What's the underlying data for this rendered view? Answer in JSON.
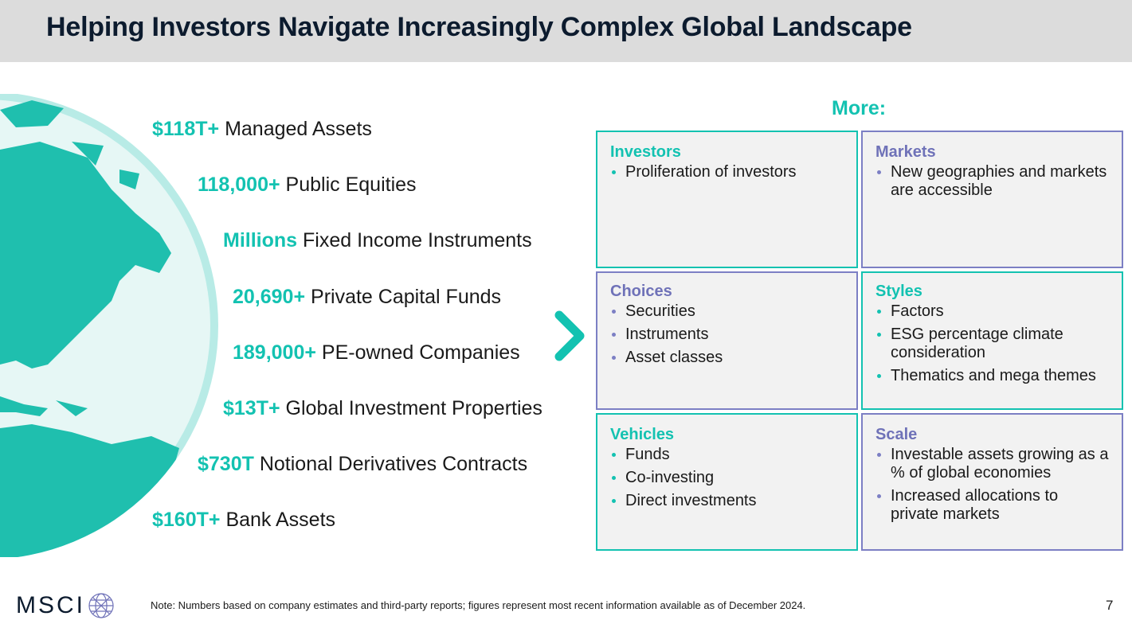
{
  "title": "Helping Investors Navigate Increasingly Complex Global Landscape",
  "stats": [
    {
      "value": "$118T+",
      "label": "Managed Assets"
    },
    {
      "value": "118,000+",
      "label": "Public Equities"
    },
    {
      "value": "Millions",
      "label": "Fixed Income Instruments"
    },
    {
      "value": "20,690+",
      "label": "Private Capital Funds"
    },
    {
      "value": "189,000+",
      "label": "PE-owned Companies"
    },
    {
      "value": "$13T+",
      "label": "Global Investment Properties"
    },
    {
      "value": "$730T",
      "label": "Notional Derivatives Contracts"
    },
    {
      "value": "$160T+",
      "label": "Bank Assets"
    }
  ],
  "more_label": "More:",
  "boxes": {
    "investors": {
      "title": "Investors",
      "items": [
        "Proliferation of investors"
      ]
    },
    "markets": {
      "title": "Markets",
      "items": [
        "New geographies and markets are accessible"
      ]
    },
    "choices": {
      "title": "Choices",
      "items": [
        "Securities",
        "Instruments",
        "Asset classes"
      ]
    },
    "styles": {
      "title": "Styles",
      "items": [
        "Factors",
        "ESG percentage climate consideration",
        "Thematics and mega themes"
      ]
    },
    "vehicles": {
      "title": "Vehicles",
      "items": [
        "Funds",
        "Co-investing",
        "Direct investments"
      ]
    },
    "scale": {
      "title": "Scale",
      "items": [
        "Investable assets growing as a % of global economies",
        "Increased allocations to private markets"
      ]
    }
  },
  "colors": {
    "teal": "#13c2b1",
    "purple": "#7c7fc4",
    "navy": "#0c1b2e",
    "header_gray": "#dcdcdc"
  },
  "footer": {
    "logo": "MSCI",
    "note": "Note: Numbers based on company estimates and third-party reports; figures represent most recent information available as of December 2024.",
    "page_number": "7"
  }
}
